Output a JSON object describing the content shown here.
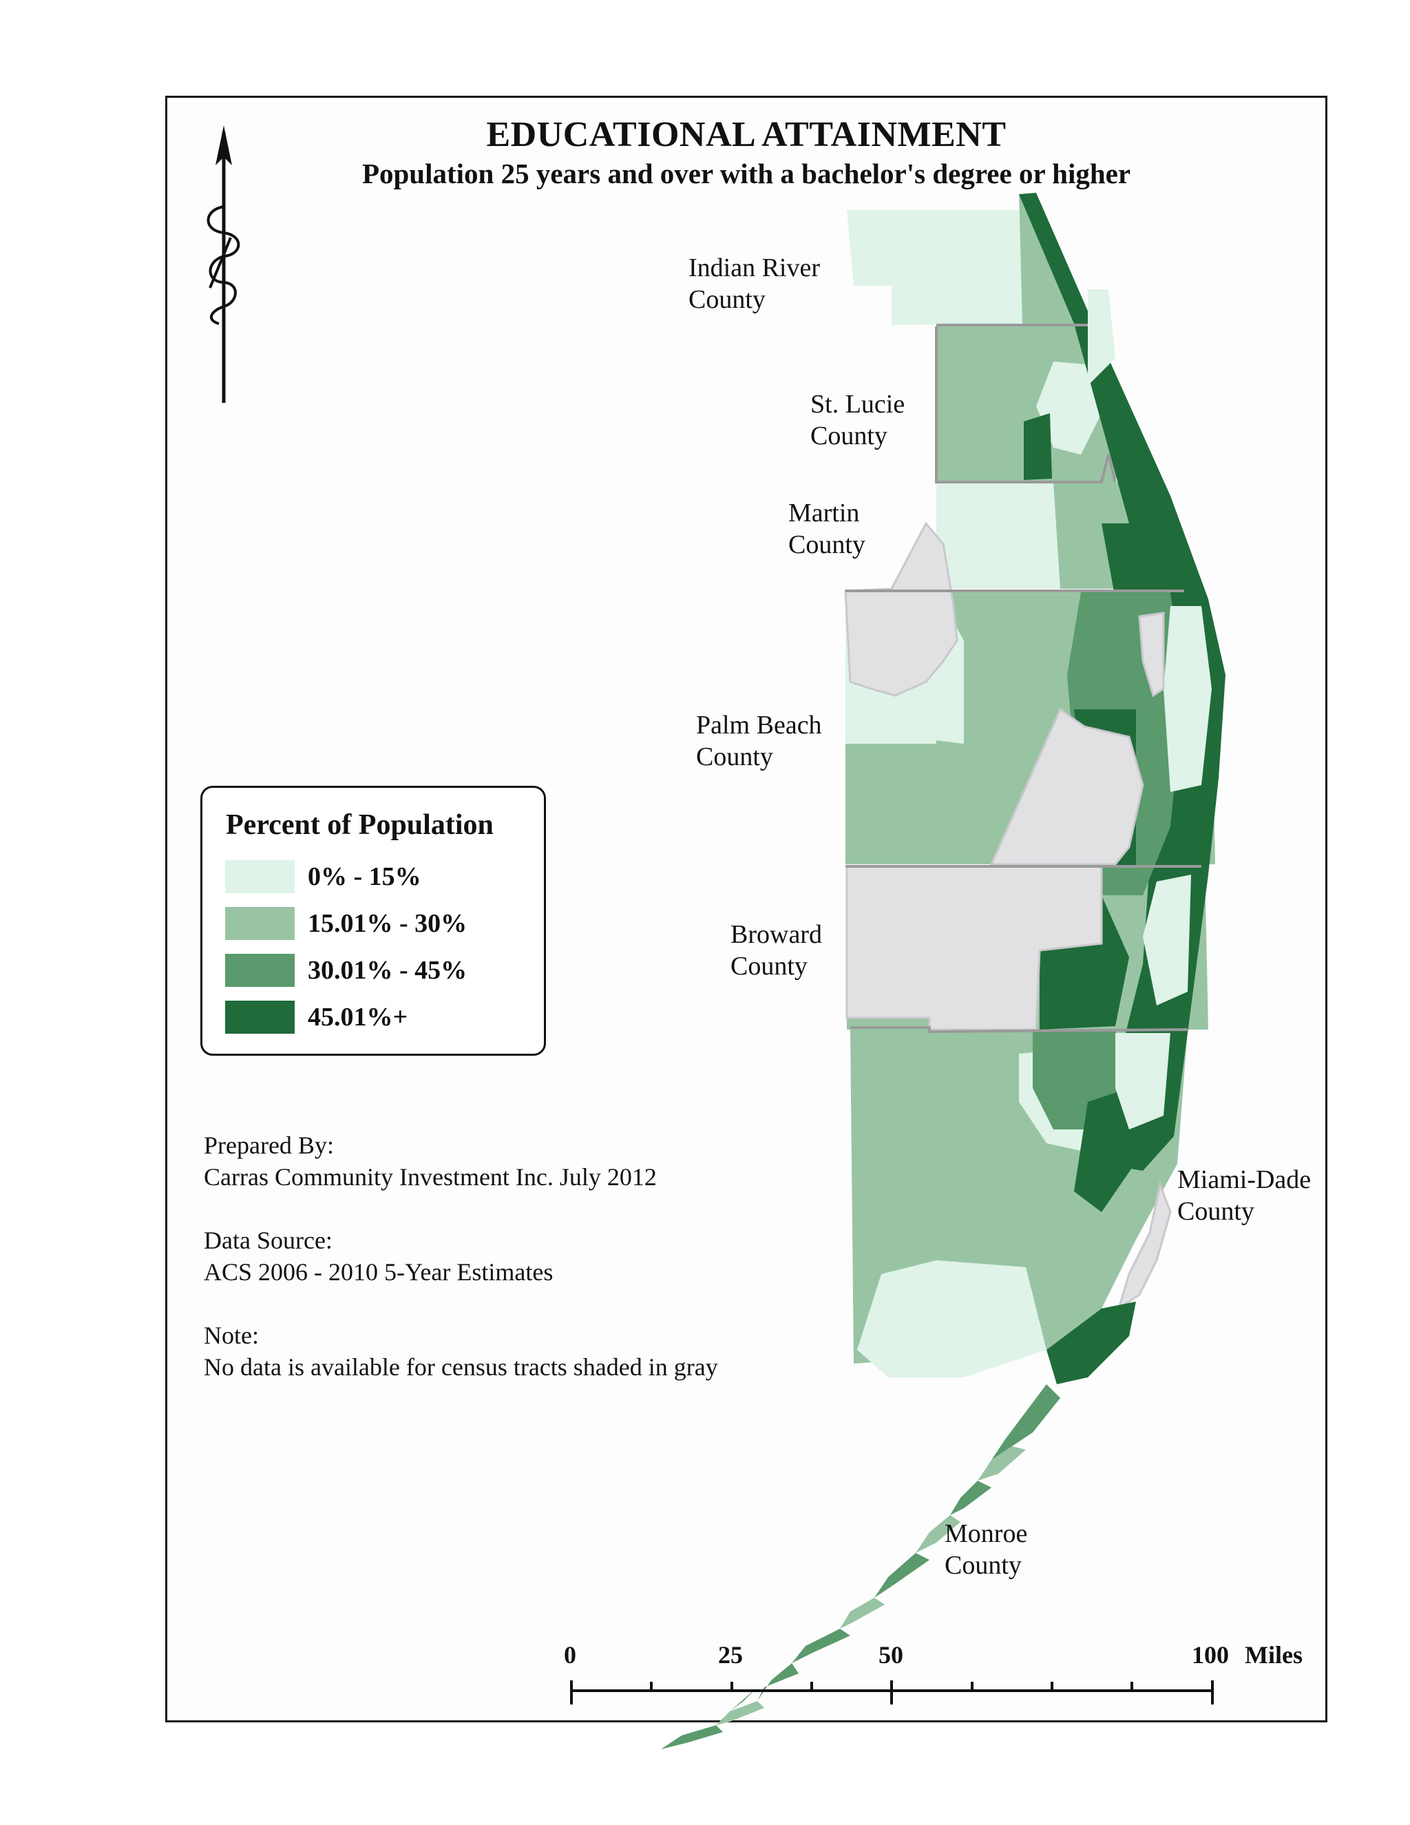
{
  "title": "EDUCATIONAL ATTAINMENT",
  "subtitle": "Population 25 years and over with a bachelor's degree or higher",
  "counties": [
    {
      "name": "Indian River\nCounty"
    },
    {
      "name": "St. Lucie\nCounty"
    },
    {
      "name": "Martin\nCounty"
    },
    {
      "name": "Palm Beach\nCounty"
    },
    {
      "name": "Broward\nCounty"
    },
    {
      "name": "Miami-Dade\nCounty"
    },
    {
      "name": "Monroe\nCounty"
    }
  ],
  "legend": {
    "title": "Percent of Population",
    "classes": [
      {
        "label": "0% - 15%",
        "color": "#dff3e8"
      },
      {
        "label": "15.01% - 30%",
        "color": "#98c4a4"
      },
      {
        "label": "30.01% - 45%",
        "color": "#5a9a6c"
      },
      {
        "label": "45.01%+",
        "color": "#1f6b3a"
      }
    ],
    "no_data_color": "#e1e0e3"
  },
  "notes": {
    "prepared_by_label": "Prepared By:",
    "prepared_by": "Carras Community Investment Inc. July 2012",
    "data_source_label": "Data Source:",
    "data_source": "ACS 2006 - 2010 5-Year Estimates",
    "note_label": "Note:",
    "note": "No data is available for census tracts shaded in gray"
  },
  "scale_bar": {
    "labels": [
      "0",
      "25",
      "50",
      "100"
    ],
    "unit": "Miles"
  },
  "north_arrow": {
    "icon": "north-arrow-icon"
  }
}
